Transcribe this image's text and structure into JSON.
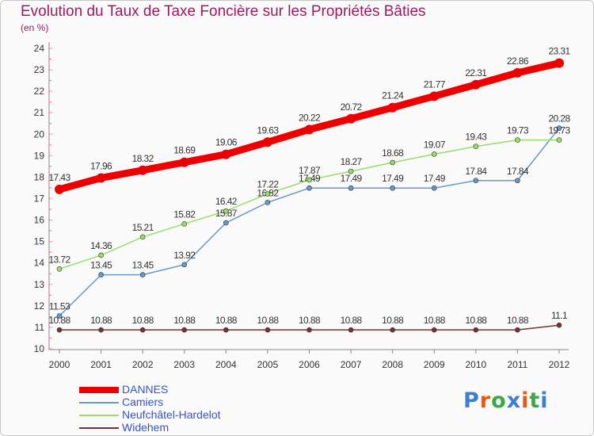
{
  "title": "Evolution du Taux de Taxe Foncière sur les Propriétés Bâties",
  "unit_label": "(en %)",
  "logo": {
    "text": "Proxiti",
    "letter_colors": [
      "#3a7fd5",
      "#e05a1a",
      "#39a845",
      "#3a7fd5",
      "#e05a1a",
      "#39a845",
      "#3a7fd5"
    ]
  },
  "chart_data": {
    "type": "line",
    "title": "Evolution du Taux de Taxe Foncière sur les Propriétés Bâties",
    "ylabel": "(en %)",
    "x": [
      "2000",
      "2001",
      "2002",
      "2003",
      "2004",
      "2005",
      "2006",
      "2007",
      "2008",
      "2009",
      "2010",
      "2011",
      "2012"
    ],
    "ylim": [
      10,
      24
    ],
    "yticks": [
      "10",
      "11",
      "12",
      "13",
      "14",
      "15",
      "16",
      "17",
      "18",
      "19",
      "20",
      "21",
      "22",
      "23",
      "24"
    ],
    "grid": false,
    "legend_position": "bottom-left",
    "series": [
      {
        "name": "DANNES",
        "color": "#ee0000",
        "thick": true,
        "values": [
          17.43,
          17.96,
          18.32,
          18.69,
          19.06,
          19.63,
          20.22,
          20.72,
          21.24,
          21.77,
          22.31,
          22.86,
          23.31
        ],
        "labels": [
          "17.43",
          "17.96",
          "18.32",
          "18.69",
          "19.06",
          "19.63",
          "20.22",
          "20.72",
          "21.24",
          "21.77",
          "22.31",
          "22.86",
          "23.31"
        ]
      },
      {
        "name": "Camiers",
        "color": "#6699cc",
        "thick": false,
        "values": [
          11.53,
          13.45,
          13.45,
          13.92,
          15.87,
          16.82,
          17.49,
          17.49,
          17.49,
          17.49,
          17.84,
          17.84,
          20.28
        ],
        "labels": [
          "11.53",
          "13.45",
          "13.45",
          "13.92",
          "15.87",
          "16.82",
          "17.49",
          "17.49",
          "17.49",
          "17.49",
          "17.84",
          "17.84",
          "20.28"
        ]
      },
      {
        "name": "Neufchâtel-Hardelot",
        "color": "#99dd66",
        "thick": false,
        "values": [
          13.72,
          14.36,
          15.21,
          15.82,
          16.42,
          17.22,
          17.87,
          18.27,
          18.68,
          19.07,
          19.43,
          19.73,
          19.73
        ],
        "labels": [
          "13.72",
          "14.36",
          "15.21",
          "15.82",
          "16.42",
          "17.22",
          "17.87",
          "18.27",
          "18.68",
          "19.07",
          "19.43",
          "19.73",
          "19.73"
        ]
      },
      {
        "name": "Widehem",
        "color": "#773333",
        "thick": false,
        "values": [
          10.88,
          10.88,
          10.88,
          10.88,
          10.88,
          10.88,
          10.88,
          10.88,
          10.88,
          10.88,
          10.88,
          10.88,
          11.1
        ],
        "labels": [
          "10.88",
          "10.88",
          "10.88",
          "10.88",
          "10.88",
          "10.88",
          "10.88",
          "10.88",
          "10.88",
          "10.88",
          "10.88",
          "10.88",
          "11.1"
        ]
      }
    ]
  }
}
